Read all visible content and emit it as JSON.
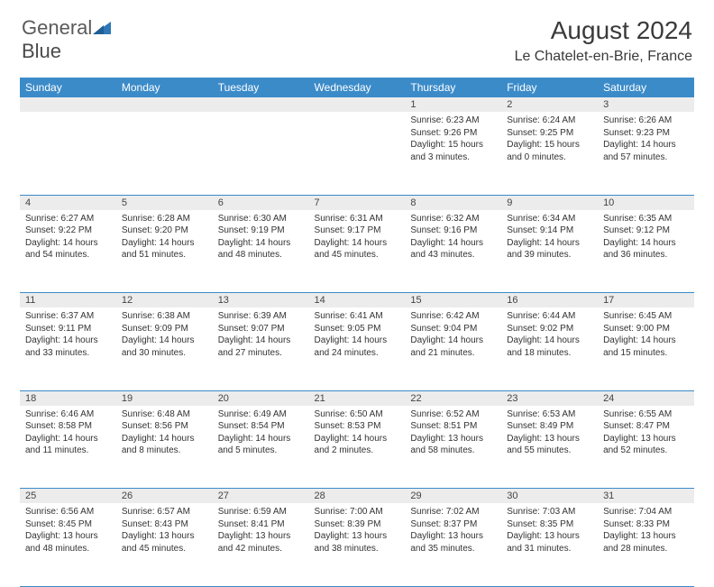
{
  "brand": {
    "part1": "General",
    "part2": "Blue"
  },
  "title": "August 2024",
  "location": "Le Chatelet-en-Brie, France",
  "colors": {
    "header_bg": "#3b8bc9",
    "header_text": "#ffffff",
    "daynum_bg": "#ececec",
    "cell_border": "#3b8bc9",
    "body_text": "#333333",
    "title_text": "#3a3a3a",
    "logo_gray": "#5a5a5a",
    "logo_blue": "#2f77b6"
  },
  "day_headers": [
    "Sunday",
    "Monday",
    "Tuesday",
    "Wednesday",
    "Thursday",
    "Friday",
    "Saturday"
  ],
  "weeks": [
    [
      null,
      null,
      null,
      null,
      {
        "n": "1",
        "sr": "Sunrise: 6:23 AM",
        "ss": "Sunset: 9:26 PM",
        "dl": "Daylight: 15 hours and 3 minutes."
      },
      {
        "n": "2",
        "sr": "Sunrise: 6:24 AM",
        "ss": "Sunset: 9:25 PM",
        "dl": "Daylight: 15 hours and 0 minutes."
      },
      {
        "n": "3",
        "sr": "Sunrise: 6:26 AM",
        "ss": "Sunset: 9:23 PM",
        "dl": "Daylight: 14 hours and 57 minutes."
      }
    ],
    [
      {
        "n": "4",
        "sr": "Sunrise: 6:27 AM",
        "ss": "Sunset: 9:22 PM",
        "dl": "Daylight: 14 hours and 54 minutes."
      },
      {
        "n": "5",
        "sr": "Sunrise: 6:28 AM",
        "ss": "Sunset: 9:20 PM",
        "dl": "Daylight: 14 hours and 51 minutes."
      },
      {
        "n": "6",
        "sr": "Sunrise: 6:30 AM",
        "ss": "Sunset: 9:19 PM",
        "dl": "Daylight: 14 hours and 48 minutes."
      },
      {
        "n": "7",
        "sr": "Sunrise: 6:31 AM",
        "ss": "Sunset: 9:17 PM",
        "dl": "Daylight: 14 hours and 45 minutes."
      },
      {
        "n": "8",
        "sr": "Sunrise: 6:32 AM",
        "ss": "Sunset: 9:16 PM",
        "dl": "Daylight: 14 hours and 43 minutes."
      },
      {
        "n": "9",
        "sr": "Sunrise: 6:34 AM",
        "ss": "Sunset: 9:14 PM",
        "dl": "Daylight: 14 hours and 39 minutes."
      },
      {
        "n": "10",
        "sr": "Sunrise: 6:35 AM",
        "ss": "Sunset: 9:12 PM",
        "dl": "Daylight: 14 hours and 36 minutes."
      }
    ],
    [
      {
        "n": "11",
        "sr": "Sunrise: 6:37 AM",
        "ss": "Sunset: 9:11 PM",
        "dl": "Daylight: 14 hours and 33 minutes."
      },
      {
        "n": "12",
        "sr": "Sunrise: 6:38 AM",
        "ss": "Sunset: 9:09 PM",
        "dl": "Daylight: 14 hours and 30 minutes."
      },
      {
        "n": "13",
        "sr": "Sunrise: 6:39 AM",
        "ss": "Sunset: 9:07 PM",
        "dl": "Daylight: 14 hours and 27 minutes."
      },
      {
        "n": "14",
        "sr": "Sunrise: 6:41 AM",
        "ss": "Sunset: 9:05 PM",
        "dl": "Daylight: 14 hours and 24 minutes."
      },
      {
        "n": "15",
        "sr": "Sunrise: 6:42 AM",
        "ss": "Sunset: 9:04 PM",
        "dl": "Daylight: 14 hours and 21 minutes."
      },
      {
        "n": "16",
        "sr": "Sunrise: 6:44 AM",
        "ss": "Sunset: 9:02 PM",
        "dl": "Daylight: 14 hours and 18 minutes."
      },
      {
        "n": "17",
        "sr": "Sunrise: 6:45 AM",
        "ss": "Sunset: 9:00 PM",
        "dl": "Daylight: 14 hours and 15 minutes."
      }
    ],
    [
      {
        "n": "18",
        "sr": "Sunrise: 6:46 AM",
        "ss": "Sunset: 8:58 PM",
        "dl": "Daylight: 14 hours and 11 minutes."
      },
      {
        "n": "19",
        "sr": "Sunrise: 6:48 AM",
        "ss": "Sunset: 8:56 PM",
        "dl": "Daylight: 14 hours and 8 minutes."
      },
      {
        "n": "20",
        "sr": "Sunrise: 6:49 AM",
        "ss": "Sunset: 8:54 PM",
        "dl": "Daylight: 14 hours and 5 minutes."
      },
      {
        "n": "21",
        "sr": "Sunrise: 6:50 AM",
        "ss": "Sunset: 8:53 PM",
        "dl": "Daylight: 14 hours and 2 minutes."
      },
      {
        "n": "22",
        "sr": "Sunrise: 6:52 AM",
        "ss": "Sunset: 8:51 PM",
        "dl": "Daylight: 13 hours and 58 minutes."
      },
      {
        "n": "23",
        "sr": "Sunrise: 6:53 AM",
        "ss": "Sunset: 8:49 PM",
        "dl": "Daylight: 13 hours and 55 minutes."
      },
      {
        "n": "24",
        "sr": "Sunrise: 6:55 AM",
        "ss": "Sunset: 8:47 PM",
        "dl": "Daylight: 13 hours and 52 minutes."
      }
    ],
    [
      {
        "n": "25",
        "sr": "Sunrise: 6:56 AM",
        "ss": "Sunset: 8:45 PM",
        "dl": "Daylight: 13 hours and 48 minutes."
      },
      {
        "n": "26",
        "sr": "Sunrise: 6:57 AM",
        "ss": "Sunset: 8:43 PM",
        "dl": "Daylight: 13 hours and 45 minutes."
      },
      {
        "n": "27",
        "sr": "Sunrise: 6:59 AM",
        "ss": "Sunset: 8:41 PM",
        "dl": "Daylight: 13 hours and 42 minutes."
      },
      {
        "n": "28",
        "sr": "Sunrise: 7:00 AM",
        "ss": "Sunset: 8:39 PM",
        "dl": "Daylight: 13 hours and 38 minutes."
      },
      {
        "n": "29",
        "sr": "Sunrise: 7:02 AM",
        "ss": "Sunset: 8:37 PM",
        "dl": "Daylight: 13 hours and 35 minutes."
      },
      {
        "n": "30",
        "sr": "Sunrise: 7:03 AM",
        "ss": "Sunset: 8:35 PM",
        "dl": "Daylight: 13 hours and 31 minutes."
      },
      {
        "n": "31",
        "sr": "Sunrise: 7:04 AM",
        "ss": "Sunset: 8:33 PM",
        "dl": "Daylight: 13 hours and 28 minutes."
      }
    ]
  ]
}
